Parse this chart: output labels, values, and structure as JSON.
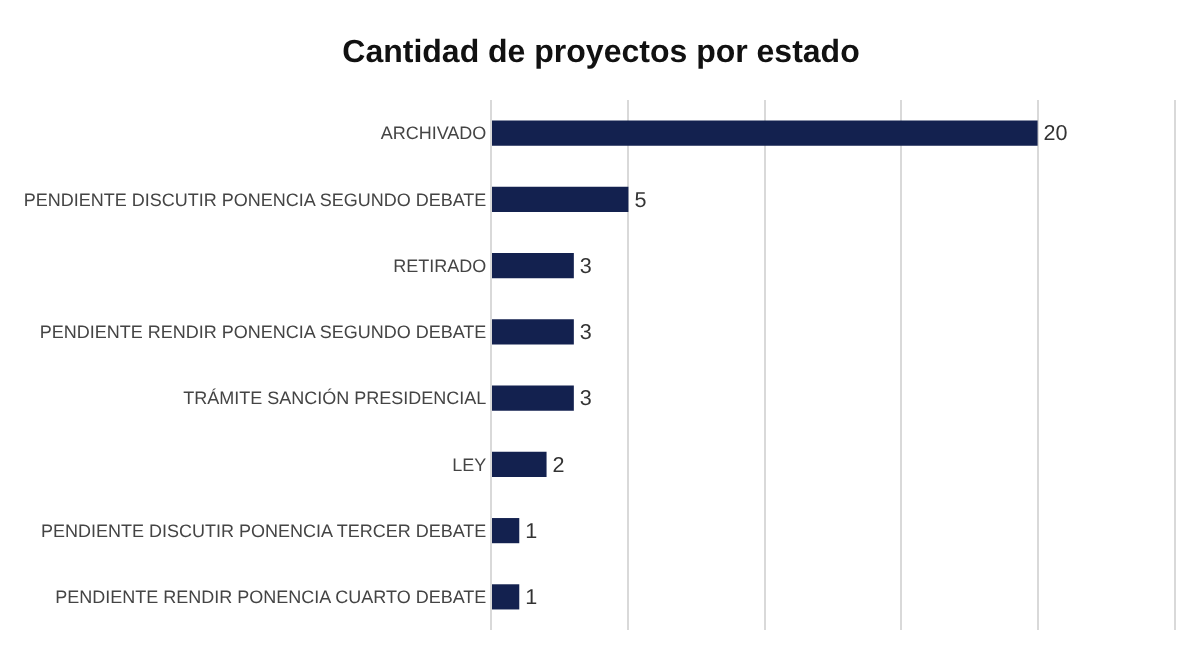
{
  "chart_data": {
    "type": "bar",
    "orientation": "horizontal",
    "title": "Cantidad de proyectos por estado",
    "categories": [
      "ARCHIVADO",
      "PENDIENTE DISCUTIR PONENCIA SEGUNDO DEBATE",
      "RETIRADO",
      "PENDIENTE RENDIR PONENCIA SEGUNDO DEBATE",
      "TRÁMITE SANCIÓN PRESIDENCIAL",
      "LEY",
      "PENDIENTE DISCUTIR PONENCIA TERCER DEBATE",
      "PENDIENTE RENDIR PONENCIA CUARTO DEBATE"
    ],
    "values": [
      20,
      5,
      3,
      3,
      3,
      2,
      1,
      1
    ],
    "color": "#13214f",
    "xlim": [
      0,
      25
    ],
    "xticks": [
      {
        "value": 0,
        "label": null
      },
      {
        "value": 5,
        "label": null
      },
      {
        "value": 10,
        "label": null
      },
      {
        "value": 15,
        "label": null
      },
      {
        "value": 20,
        "label": null
      },
      {
        "value": 25,
        "label": null
      }
    ],
    "grid": "x",
    "tick_labels": "y",
    "data_labels": true
  }
}
